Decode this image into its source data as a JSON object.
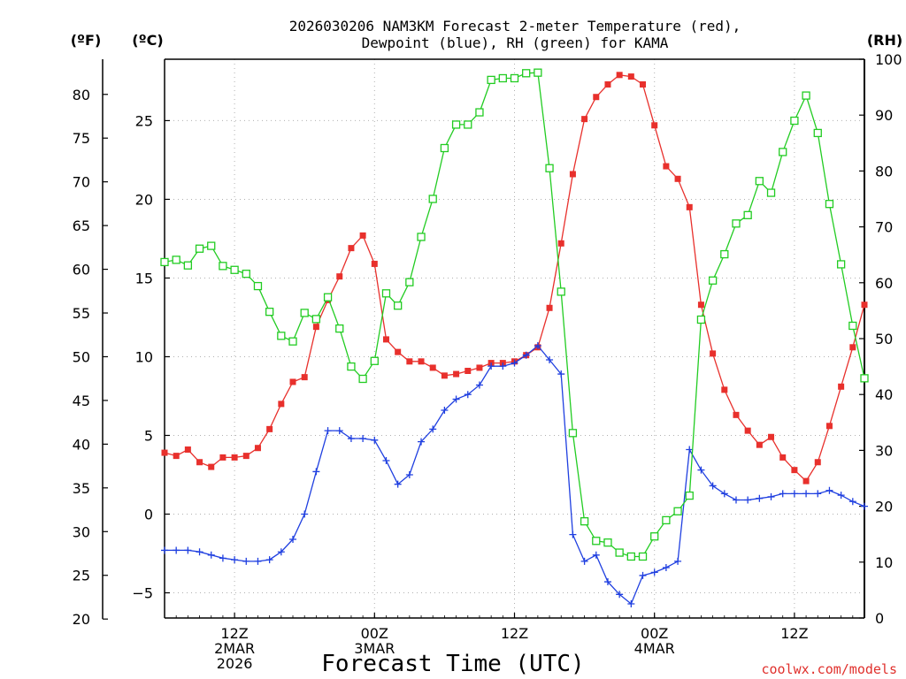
{
  "chart_data": {
    "type": "line",
    "title_line1": "2026030206 NAM3KM Forecast 2-meter Temperature (red),",
    "title_line2": "Dewpoint (blue), RH (green) for KAMA",
    "xlabel": "Forecast Time (UTC)",
    "credit": "coolwx.com/models",
    "units": {
      "f": "(ºF)",
      "c": "(ºC)",
      "rh": "(RH)"
    },
    "x_hours_range": [
      6,
      66
    ],
    "ylim_c": [
      -6.6,
      28.9
    ],
    "ylim_rh": [
      0,
      100
    ],
    "f_ticks": [
      20,
      25,
      30,
      35,
      40,
      45,
      50,
      55,
      60,
      65,
      70,
      75,
      80
    ],
    "c_ticks": [
      -5,
      0,
      5,
      10,
      15,
      20,
      25
    ],
    "rh_ticks": [
      0,
      10,
      20,
      30,
      40,
      50,
      60,
      70,
      80,
      90,
      100
    ],
    "x_ticks": [
      {
        "hour": 12,
        "lines": [
          "12Z",
          "2MAR",
          "2026"
        ]
      },
      {
        "hour": 24,
        "lines": [
          "00Z",
          "3MAR"
        ]
      },
      {
        "hour": 36,
        "lines": [
          "12Z"
        ]
      },
      {
        "hour": 48,
        "lines": [
          "00Z",
          "4MAR"
        ]
      },
      {
        "hour": 60,
        "lines": [
          "12Z"
        ]
      }
    ],
    "hours": [
      6,
      7,
      8,
      9,
      10,
      11,
      12,
      13,
      14,
      15,
      16,
      17,
      18,
      19,
      20,
      21,
      22,
      23,
      24,
      25,
      26,
      27,
      28,
      29,
      30,
      31,
      32,
      33,
      34,
      35,
      36,
      37,
      38,
      39,
      40,
      41,
      42,
      43,
      44,
      45,
      46,
      47,
      48,
      49,
      50,
      51,
      52,
      53,
      54,
      55,
      56,
      57,
      58,
      59,
      60,
      61,
      62,
      63,
      64,
      65,
      66
    ],
    "series": [
      {
        "name": "2-meter Temperature",
        "unit": "C",
        "color": "#e8302c",
        "marker": "filled-square",
        "values": [
          3.9,
          3.7,
          4.1,
          3.3,
          3.0,
          3.6,
          3.6,
          3.7,
          4.2,
          5.4,
          7.0,
          8.4,
          8.7,
          11.9,
          13.6,
          15.1,
          16.9,
          17.7,
          15.9,
          11.1,
          10.3,
          9.7,
          9.7,
          9.3,
          8.8,
          8.9,
          9.1,
          9.3,
          9.6,
          9.6,
          9.7,
          10.1,
          10.6,
          13.1,
          17.2,
          21.6,
          25.1,
          26.5,
          27.3,
          27.9,
          27.8,
          27.3,
          24.7,
          22.1,
          21.3,
          19.5,
          13.3,
          10.2,
          7.9,
          6.3,
          5.3,
          4.4,
          4.9,
          3.6,
          2.8,
          2.1,
          3.3,
          5.6,
          8.1,
          10.6,
          13.3
        ]
      },
      {
        "name": "Dewpoint",
        "unit": "C",
        "color": "#1f3fe0",
        "marker": "plus",
        "values": [
          -2.3,
          -2.3,
          -2.3,
          -2.4,
          -2.6,
          -2.8,
          -2.9,
          -3.0,
          -3.0,
          -2.9,
          -2.4,
          -1.6,
          0.0,
          2.7,
          5.3,
          5.3,
          4.8,
          4.8,
          4.7,
          3.4,
          1.9,
          2.5,
          4.6,
          5.4,
          6.6,
          7.3,
          7.6,
          8.2,
          9.4,
          9.4,
          9.6,
          10.1,
          10.7,
          9.8,
          8.9,
          -1.3,
          -3.0,
          -2.6,
          -4.3,
          -5.1,
          -5.7,
          -3.9,
          -3.7,
          -3.4,
          -3.0,
          4.1,
          2.8,
          1.8,
          1.3,
          0.9,
          0.9,
          1.0,
          1.1,
          1.3,
          1.3,
          1.3,
          1.3,
          1.5,
          1.2,
          0.8,
          0.5
        ]
      },
      {
        "name": "RH",
        "unit": "%",
        "color": "#22cc22",
        "marker": "open-square",
        "values": [
          63.7,
          64.1,
          63.1,
          66.1,
          66.6,
          63.0,
          62.3,
          61.6,
          59.4,
          54.8,
          50.5,
          49.5,
          54.6,
          53.5,
          57.4,
          51.8,
          45.0,
          42.8,
          46.0,
          58.1,
          55.9,
          60.1,
          68.2,
          75.0,
          84.1,
          88.3,
          88.3,
          90.5,
          96.3,
          96.6,
          96.6,
          97.5,
          97.6,
          80.5,
          58.4,
          33.1,
          17.3,
          13.8,
          13.5,
          11.7,
          11.0,
          11.0,
          14.6,
          17.5,
          19.1,
          21.9,
          53.4,
          60.4,
          65.1,
          70.6,
          72.1,
          78.2,
          76.1,
          83.4,
          89.0,
          93.5,
          86.8,
          74.1,
          63.3,
          52.3,
          42.9
        ]
      }
    ]
  }
}
